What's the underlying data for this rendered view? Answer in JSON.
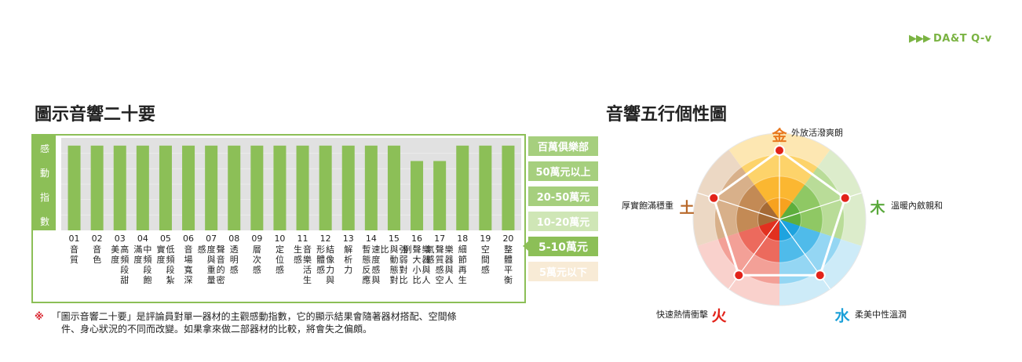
{
  "brand": {
    "arrows": "▶▶▶",
    "text": "DA&T Q-v"
  },
  "left_title": "圖示音響二十要",
  "right_title": "音響五行個性圖",
  "footnote": {
    "mark": "※",
    "line1": "「圖示音響二十要」是評論員對單一器材的主觀感動指數，它的顯示結果會隨著器材搭配、空間條",
    "line2": "件、身心狀況的不同而改變。如果拿來做二部器材的比較，將會失之偏頗。"
  },
  "chart_data": [
    {
      "type": "bar",
      "ylabel": "感動指數",
      "ylabel_chars": [
        "感",
        "動",
        "指",
        "數"
      ],
      "levels": [
        "百萬俱樂部",
        "50萬元以上",
        "20-50萬元",
        "10-20萬元",
        "5-10萬元",
        "5萬元以下"
      ],
      "level_colors": [
        "#a6cf7e",
        "#a6cf7e",
        "#a6cf7e",
        "#cfe6b6",
        "#8cbf57",
        "#f8ebd6"
      ],
      "selected_level": "5-10萬元",
      "categories": [
        {
          "num": "01",
          "name": "音質"
        },
        {
          "num": "02",
          "name": "音色"
        },
        {
          "num": "03",
          "name": "高頻段甜美度"
        },
        {
          "num": "04",
          "name": "中頻段飽滿度"
        },
        {
          "num": "05",
          "name": "低頻段紮實度"
        },
        {
          "num": "06",
          "name": "音場寬深"
        },
        {
          "num": "07",
          "name": "聲音的密度與重量感"
        },
        {
          "num": "08",
          "name": "透明感"
        },
        {
          "num": "09",
          "name": "層次感"
        },
        {
          "num": "10",
          "name": "定位感"
        },
        {
          "num": "11",
          "name": "音樂活生生感"
        },
        {
          "num": "12",
          "name": "結像力與形體感"
        },
        {
          "num": "13",
          "name": "解析力"
        },
        {
          "num": "14",
          "name": "速度感與暫態反應"
        },
        {
          "num": "15",
          "name": "強弱對比與動態對比"
        },
        {
          "num": "16",
          "name": "樂器與人聲大小比例"
        },
        {
          "num": "17",
          "name": "樂器與人聲質感空氣感"
        },
        {
          "num": "18",
          "name": "細節再生"
        },
        {
          "num": "19",
          "name": "空間感"
        },
        {
          "num": "20",
          "name": "整體平衡"
        }
      ],
      "values": [
        5.5,
        5.5,
        5.5,
        5.5,
        5.5,
        5.5,
        5.5,
        5.5,
        5.5,
        5.5,
        5.5,
        5.5,
        5.5,
        5.5,
        5.5,
        4.5,
        4.5,
        5.5,
        5.5,
        5.5
      ],
      "ylim": [
        0,
        6
      ],
      "bar_color": "#8cbf57"
    },
    {
      "type": "radar",
      "axes": [
        {
          "element": "金",
          "label": "外放活潑爽朗",
          "value": 0.8,
          "color": "#e8781e"
        },
        {
          "element": "木",
          "label": "溫暖內斂親和",
          "value": 0.8,
          "color": "#5aa93c"
        },
        {
          "element": "水",
          "label": "柔美中性溫潤",
          "value": 0.8,
          "color": "#1ba0d8"
        },
        {
          "element": "火",
          "label": "快速熱情衝擊",
          "value": 0.8,
          "color": "#e2231a"
        },
        {
          "element": "土",
          "label": "厚實飽滿穩重",
          "value": 0.8,
          "color": "#b8682a"
        }
      ],
      "rings": 4,
      "rmax": 1,
      "point_color": "#e2231a"
    }
  ]
}
